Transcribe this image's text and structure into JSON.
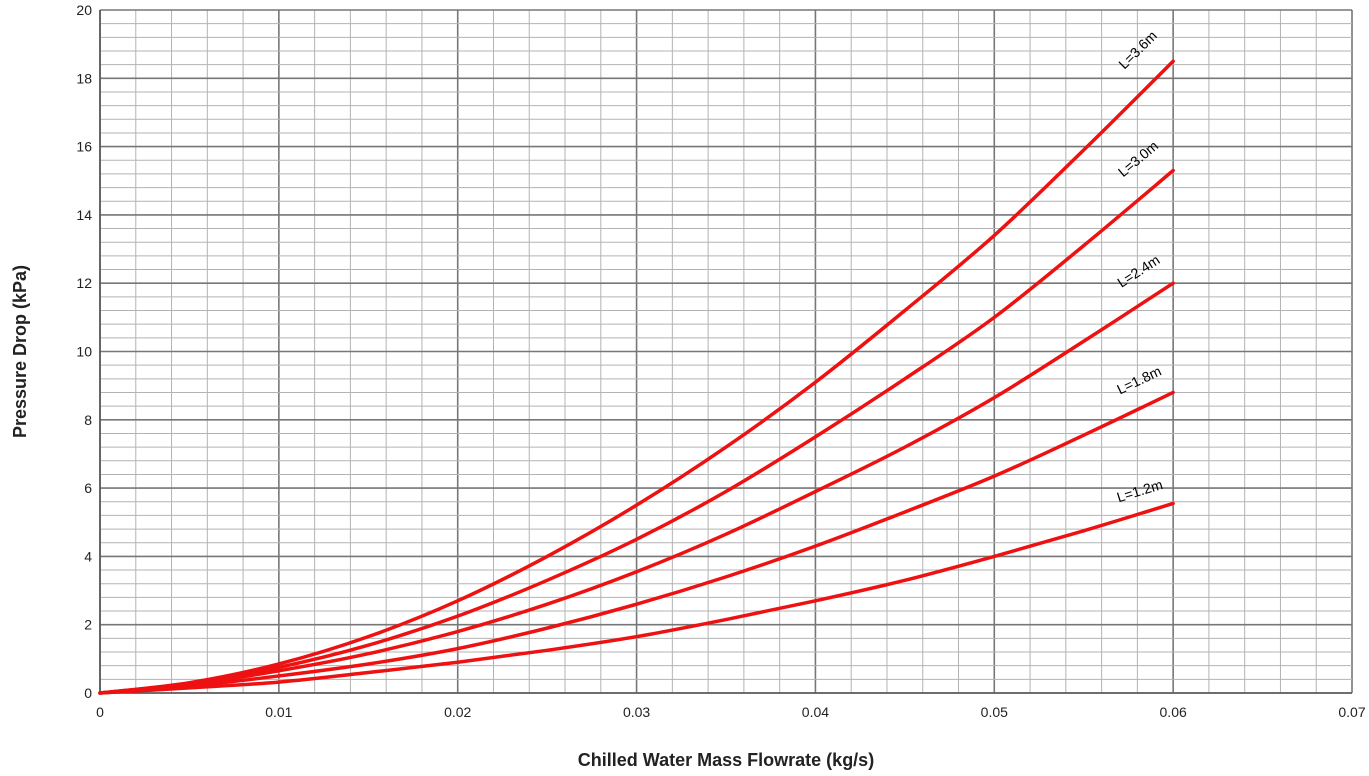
{
  "chart_data": {
    "type": "line",
    "title": "",
    "xlabel": "Chilled Water Mass Flowrate (kg/s)",
    "ylabel": "Pressure Drop (kPa)",
    "xlim": [
      0,
      0.07
    ],
    "ylim": [
      0,
      20
    ],
    "x_ticks": [
      "0",
      "0.01",
      "0.02",
      "0.03",
      "0.04",
      "0.05",
      "0.06",
      "0.07"
    ],
    "y_ticks": [
      "0",
      "2",
      "4",
      "6",
      "8",
      "10",
      "12",
      "14",
      "16",
      "18",
      "20"
    ],
    "grid": true,
    "line_color": "#ee1111",
    "x": [
      0,
      0.005,
      0.01,
      0.015,
      0.02,
      0.025,
      0.03,
      0.035,
      0.04,
      0.045,
      0.05,
      0.055,
      0.06
    ],
    "series": [
      {
        "name": "L=3.6m",
        "values": [
          0,
          0.3,
          0.85,
          1.65,
          2.7,
          4.0,
          5.5,
          7.2,
          9.1,
          11.2,
          13.4,
          15.9,
          18.5
        ]
      },
      {
        "name": "L=3.0m",
        "values": [
          0,
          0.28,
          0.75,
          1.4,
          2.25,
          3.3,
          4.5,
          5.9,
          7.5,
          9.2,
          11.0,
          13.1,
          15.3
        ]
      },
      {
        "name": "L=2.4m",
        "values": [
          0,
          0.25,
          0.65,
          1.15,
          1.8,
          2.6,
          3.55,
          4.65,
          5.9,
          7.2,
          8.65,
          10.3,
          12.0
        ]
      },
      {
        "name": "L=1.8m",
        "values": [
          0,
          0.2,
          0.5,
          0.85,
          1.3,
          1.9,
          2.6,
          3.4,
          4.3,
          5.3,
          6.35,
          7.55,
          8.8
        ]
      },
      {
        "name": "L=1.2m",
        "values": [
          0,
          0.15,
          0.32,
          0.6,
          0.9,
          1.25,
          1.65,
          2.15,
          2.7,
          3.3,
          4.0,
          4.75,
          5.55
        ]
      }
    ]
  }
}
